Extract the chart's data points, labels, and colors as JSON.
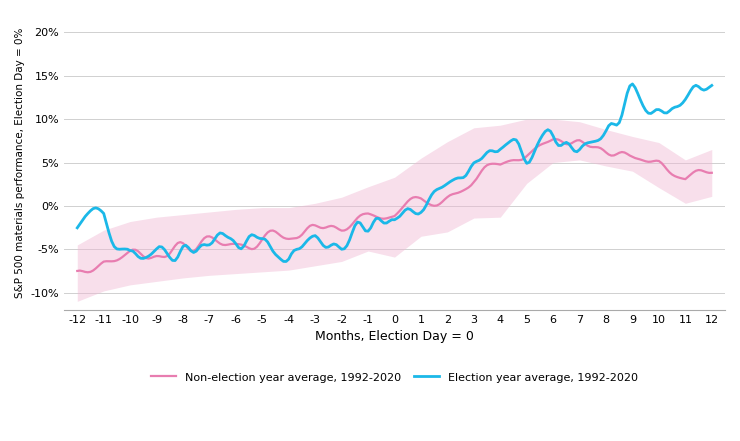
{
  "xlabel": "Months, Election Day = 0",
  "ylabel": "S&P 500 materials performance, Election Day = 0%",
  "x_ticks": [
    -12,
    -11,
    -10,
    -9,
    -8,
    -7,
    -6,
    -5,
    -4,
    -3,
    -2,
    -1,
    0,
    1,
    2,
    3,
    4,
    5,
    6,
    7,
    8,
    9,
    10,
    11,
    12
  ],
  "ylim": [
    -0.12,
    0.22
  ],
  "yticks": [
    -0.1,
    -0.05,
    0.0,
    0.05,
    0.1,
    0.15,
    0.2
  ],
  "election_color": "#1BB8E8",
  "non_election_color": "#E87DB0",
  "non_election_band_color": "#F0B8D4",
  "background_color": "#FFFFFF",
  "legend_election": "Election year average, 1992-2020",
  "legend_non_election": "Non-election year average, 1992-2020",
  "election_y_monthly": [
    -0.037,
    -0.003,
    -0.045,
    -0.05,
    -0.042,
    -0.038,
    -0.04,
    -0.049,
    -0.055,
    -0.038,
    -0.036,
    -0.025,
    -0.025,
    0.008,
    0.027,
    0.048,
    0.062,
    0.058,
    0.068,
    0.075,
    0.083,
    0.104,
    0.11,
    0.126,
    0.145
  ],
  "non_election_y_monthly": [
    -0.083,
    -0.063,
    -0.055,
    -0.05,
    -0.047,
    -0.044,
    -0.041,
    -0.039,
    -0.038,
    -0.033,
    -0.027,
    -0.015,
    -0.013,
    0.01,
    0.022,
    0.038,
    0.04,
    0.063,
    0.075,
    0.075,
    0.067,
    0.06,
    0.047,
    0.028,
    0.038
  ],
  "non_election_upper_monthly": [
    -0.045,
    -0.028,
    -0.018,
    -0.013,
    -0.01,
    -0.007,
    -0.004,
    -0.002,
    -0.002,
    0.003,
    0.01,
    0.022,
    0.033,
    0.055,
    0.074,
    0.09,
    0.093,
    0.1,
    0.1,
    0.097,
    0.088,
    0.08,
    0.073,
    0.053,
    0.065
  ],
  "non_election_lower_monthly": [
    -0.11,
    -0.098,
    -0.091,
    -0.087,
    -0.083,
    -0.08,
    -0.078,
    -0.076,
    -0.074,
    -0.069,
    -0.064,
    -0.052,
    -0.059,
    -0.035,
    -0.03,
    -0.014,
    -0.013,
    0.026,
    0.05,
    0.053,
    0.046,
    0.04,
    0.021,
    0.003,
    0.011
  ],
  "noise_seed_election": 42,
  "noise_seed_non_election": 7,
  "noise_amplitude_election": 0.01,
  "noise_amplitude_non_election": 0.006,
  "points_per_month": 10
}
